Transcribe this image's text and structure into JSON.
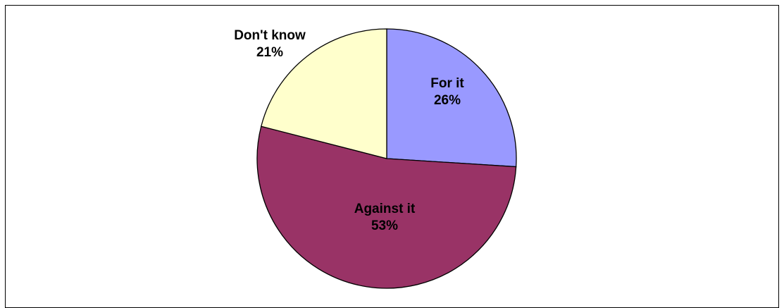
{
  "chart_data": {
    "type": "pie",
    "title": "",
    "slices": [
      {
        "label": "For it",
        "value": 26,
        "value_label": "26%",
        "color": "#9999ff"
      },
      {
        "label": "Against it",
        "value": 53,
        "value_label": "53%",
        "color": "#993366"
      },
      {
        "label": "Don't know",
        "value": 21,
        "value_label": "21%",
        "color": "#ffffcc"
      }
    ],
    "start_angle_deg": 0,
    "direction": "clockwise",
    "legend": "none"
  }
}
